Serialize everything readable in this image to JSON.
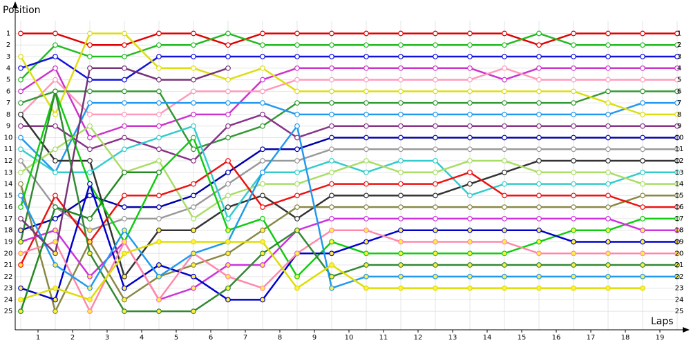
{
  "chart_data": {
    "type": "line",
    "title_y": "Position",
    "title_x": "Laps",
    "x": [
      0,
      1,
      2,
      3,
      4,
      5,
      6,
      7,
      8,
      9,
      10,
      11,
      12,
      13,
      14,
      15,
      16,
      17,
      18,
      19
    ],
    "xlim": [
      -0.16,
      19.2
    ],
    "xticks": [
      {
        "value": 0.5,
        "label": "1"
      },
      {
        "value": 1.5,
        "label": "2"
      },
      {
        "value": 2.5,
        "label": "3"
      },
      {
        "value": 3.5,
        "label": "4"
      },
      {
        "value": 4.5,
        "label": "5"
      },
      {
        "value": 5.5,
        "label": "6"
      },
      {
        "value": 6.5,
        "label": "7"
      },
      {
        "value": 7.5,
        "label": "8"
      },
      {
        "value": 8.5,
        "label": "9"
      },
      {
        "value": 9.5,
        "label": "10"
      },
      {
        "value": 10.5,
        "label": "11"
      },
      {
        "value": 11.5,
        "label": "12"
      },
      {
        "value": 12.5,
        "label": "13"
      },
      {
        "value": 13.5,
        "label": "14"
      },
      {
        "value": 14.5,
        "label": "15"
      },
      {
        "value": 15.5,
        "label": "16"
      },
      {
        "value": 16.5,
        "label": "17"
      },
      {
        "value": 17.5,
        "label": "18"
      },
      {
        "value": 18.5,
        "label": "19"
      }
    ],
    "ylim": [
      26.6,
      -0.1
    ],
    "yticks": [
      1,
      2,
      3,
      4,
      5,
      6,
      7,
      8,
      9,
      10,
      11,
      12,
      13,
      14,
      15,
      16,
      17,
      18,
      19,
      20,
      21,
      22,
      23,
      24,
      25
    ],
    "grid": true,
    "series": [
      {
        "color": "#e00000",
        "values": [
          1,
          1,
          2,
          2,
          1,
          1,
          2,
          1,
          1,
          1,
          1,
          1,
          1,
          1,
          1,
          2,
          1,
          1,
          1,
          1
        ]
      },
      {
        "color": "#22bb22",
        "values": [
          5,
          2,
          3,
          3,
          2,
          2,
          1,
          2,
          2,
          2,
          2,
          2,
          2,
          2,
          2,
          1,
          2,
          2,
          2,
          2
        ]
      },
      {
        "color": "#1111dd",
        "values": [
          4,
          3,
          5,
          5,
          3,
          3,
          3,
          3,
          3,
          3,
          3,
          3,
          3,
          3,
          3,
          3,
          3,
          3,
          3,
          3
        ]
      },
      {
        "color": "#cc33cc",
        "values": [
          6,
          4,
          10,
          9,
          9,
          8,
          8,
          5,
          4,
          4,
          4,
          4,
          4,
          4,
          5,
          4,
          4,
          4,
          4,
          4
        ]
      },
      {
        "color": "#ff99bb",
        "values": [
          8,
          5,
          8,
          8,
          8,
          6,
          6,
          6,
          5,
          5,
          5,
          5,
          5,
          5,
          4,
          5,
          5,
          5,
          5,
          5
        ]
      },
      {
        "color": "#339933",
        "values": [
          7,
          6,
          6,
          6,
          6,
          11,
          10,
          9,
          7,
          7,
          7,
          7,
          7,
          7,
          7,
          7,
          7,
          6,
          6,
          6
        ]
      },
      {
        "color": "#2299ee",
        "values": [
          10,
          13,
          7,
          7,
          7,
          7,
          7,
          7,
          8,
          8,
          8,
          8,
          8,
          8,
          8,
          8,
          8,
          8,
          7,
          7
        ]
      },
      {
        "color": "#dddd11",
        "values": [
          3,
          8,
          1,
          1,
          4,
          4,
          5,
          4,
          6,
          6,
          6,
          6,
          6,
          6,
          6,
          6,
          6,
          7,
          8,
          8
        ]
      },
      {
        "color": "#883388",
        "values": [
          9,
          9,
          11,
          10,
          11,
          12,
          9,
          8,
          10,
          9,
          9,
          9,
          9,
          9,
          9,
          9,
          9,
          9,
          9,
          9
        ]
      },
      {
        "color": "#0000aa",
        "values": [
          18,
          17,
          15,
          16,
          16,
          15,
          13,
          11,
          11,
          10,
          10,
          10,
          10,
          10,
          10,
          10,
          10,
          10,
          10,
          10
        ]
      },
      {
        "color": "#999999",
        "values": [
          12,
          16,
          18,
          17,
          17,
          16,
          14,
          12,
          12,
          11,
          11,
          11,
          11,
          11,
          11,
          11,
          11,
          11,
          11,
          11
        ]
      },
      {
        "color": "#333333",
        "values": [
          8,
          12,
          12,
          22,
          18,
          18,
          16,
          15,
          17,
          15,
          15,
          15,
          15,
          14,
          13,
          12,
          12,
          12,
          12,
          12
        ]
      },
      {
        "color": "#33cccc",
        "values": [
          11,
          13,
          13,
          11,
          10,
          9,
          17,
          13,
          13,
          12,
          13,
          12,
          12,
          15,
          14,
          14,
          14,
          14,
          13,
          13
        ]
      },
      {
        "color": "#aadd66",
        "values": [
          13,
          11,
          9,
          13,
          12,
          17,
          15,
          14,
          14,
          13,
          12,
          13,
          13,
          12,
          12,
          13,
          13,
          13,
          14,
          14
        ]
      },
      {
        "color": "#888844",
        "values": [
          14,
          25,
          19,
          24,
          22,
          21,
          20,
          18,
          16,
          16,
          16,
          16,
          16,
          16,
          16,
          16,
          16,
          16,
          15,
          15
        ]
      },
      {
        "color": "#ee1111",
        "values": [
          21,
          15,
          19,
          15,
          15,
          14,
          12,
          16,
          15,
          14,
          14,
          14,
          14,
          13,
          15,
          15,
          15,
          15,
          16,
          16
        ]
      },
      {
        "color": "#11cc11",
        "values": [
          16,
          6,
          14,
          19,
          13,
          10,
          18,
          17,
          22,
          19,
          20,
          20,
          20,
          20,
          20,
          19,
          18,
          18,
          17,
          17
        ]
      },
      {
        "color": "#cc33dd",
        "values": [
          19,
          18,
          22,
          19,
          24,
          23,
          21,
          21,
          18,
          17,
          17,
          17,
          17,
          17,
          17,
          17,
          17,
          17,
          18,
          18
        ]
      },
      {
        "color": "#0000cc",
        "values": [
          23,
          24,
          14,
          23,
          21,
          22,
          24,
          24,
          20,
          20,
          19,
          18,
          18,
          18,
          18,
          18,
          19,
          19,
          19,
          19
        ]
      },
      {
        "color": "#ff88aa",
        "values": [
          20,
          19,
          25,
          19,
          24,
          20,
          22,
          23,
          20,
          18,
          18,
          19,
          19,
          19,
          19,
          20,
          20,
          20,
          20,
          20
        ]
      },
      {
        "color": "#338833",
        "values": [
          19,
          6,
          20,
          25,
          25,
          25,
          23,
          20,
          18,
          22,
          21,
          21,
          21,
          21,
          21,
          21,
          21,
          21,
          21,
          21
        ]
      },
      {
        "color": "#2299ee",
        "values": [
          15,
          21,
          23,
          18,
          22,
          20,
          19,
          13,
          9,
          23,
          22,
          22,
          22,
          22,
          22,
          22,
          22,
          22,
          22,
          22
        ]
      },
      {
        "color": "#dddd00",
        "values": [
          24,
          23,
          24,
          20,
          19,
          19,
          19,
          19,
          23,
          21,
          23,
          23,
          23,
          23,
          23,
          23,
          23,
          23,
          23,
          null
        ]
      },
      {
        "color": "#773377",
        "values": [
          17,
          20,
          4,
          4,
          5,
          5,
          4,
          null,
          null,
          null,
          null,
          null,
          null,
          null,
          null,
          null,
          null,
          null,
          null,
          null
        ]
      },
      {
        "color": "#228822",
        "values": [
          25,
          16,
          17,
          13,
          13,
          null,
          null,
          null,
          null,
          null,
          null,
          null,
          null,
          null,
          null,
          null,
          null,
          null,
          null,
          null
        ]
      }
    ]
  }
}
